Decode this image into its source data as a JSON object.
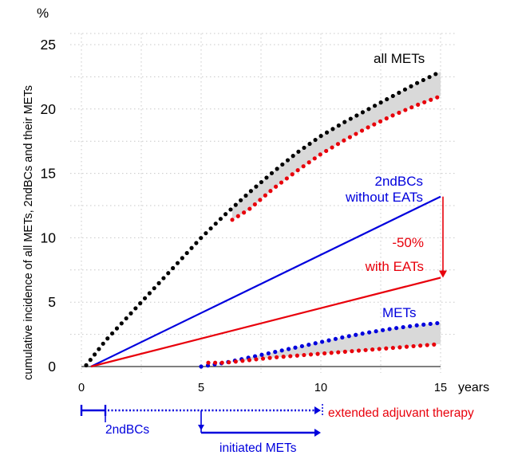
{
  "chart_data": {
    "type": "line",
    "title": "",
    "ylabel": "cumulative incidence of all METs, 2ndBCs  and their METs",
    "yunit": "%",
    "xlabel": "years",
    "xlim": [
      0,
      15
    ],
    "ylim": [
      0,
      25
    ],
    "xticks": [
      "0",
      "5",
      "10",
      "15"
    ],
    "yticks": [
      "0",
      "5",
      "10",
      "15",
      "20",
      "25"
    ],
    "grid": true,
    "series": [
      {
        "key": "all_mets",
        "name": "all METs",
        "style": "dotted",
        "color": "#000000",
        "points": [
          [
            0.2,
            0.1
          ],
          [
            1,
            2.0
          ],
          [
            2,
            4.0
          ],
          [
            3,
            6.0
          ],
          [
            4,
            8.0
          ],
          [
            5,
            10.0
          ],
          [
            6,
            11.8
          ],
          [
            7,
            13.5
          ],
          [
            8,
            15.1
          ],
          [
            9,
            16.6
          ],
          [
            10,
            17.9
          ],
          [
            11,
            19.0
          ],
          [
            12,
            20.0
          ],
          [
            13,
            21.0
          ],
          [
            14,
            22.0
          ],
          [
            15,
            22.9
          ]
        ]
      },
      {
        "key": "all_mets_eat",
        "name": "",
        "style": "dotted",
        "color": "#e8000b",
        "points": [
          [
            6.3,
            11.4
          ],
          [
            7,
            12.2
          ],
          [
            8,
            13.8
          ],
          [
            9,
            15.2
          ],
          [
            10,
            16.5
          ],
          [
            11,
            17.6
          ],
          [
            12,
            18.6
          ],
          [
            13,
            19.5
          ],
          [
            14,
            20.3
          ],
          [
            15,
            21.0
          ]
        ]
      },
      {
        "key": "second_bc_without",
        "name": "2ndBCs without EATs",
        "style": "solid",
        "color": "#0000dd",
        "points": [
          [
            0.4,
            0
          ],
          [
            15,
            13.2
          ]
        ]
      },
      {
        "key": "second_bc_with",
        "name": "with EATs",
        "style": "solid",
        "color": "#e8000b",
        "points": [
          [
            0.4,
            0
          ],
          [
            15,
            6.9
          ]
        ]
      },
      {
        "key": "mets_without",
        "name": "METs",
        "style": "dotted",
        "color": "#0000dd",
        "points": [
          [
            5,
            0
          ],
          [
            6,
            0.3
          ],
          [
            7,
            0.7
          ],
          [
            8,
            1.1
          ],
          [
            9,
            1.5
          ],
          [
            10,
            1.9
          ],
          [
            11,
            2.3
          ],
          [
            12,
            2.65
          ],
          [
            13,
            2.95
          ],
          [
            14,
            3.2
          ],
          [
            15,
            3.4
          ]
        ]
      },
      {
        "key": "mets_with",
        "name": "",
        "style": "dotted",
        "color": "#e8000b",
        "points": [
          [
            5.3,
            0.3
          ],
          [
            6,
            0.3
          ],
          [
            7,
            0.5
          ],
          [
            8,
            0.7
          ],
          [
            9,
            0.85
          ],
          [
            10,
            1.0
          ],
          [
            11,
            1.15
          ],
          [
            12,
            1.3
          ],
          [
            13,
            1.45
          ],
          [
            14,
            1.6
          ],
          [
            15,
            1.75
          ]
        ]
      }
    ],
    "shaded_bands": [
      {
        "upper": "all_mets",
        "lower": "all_mets_eat",
        "from": 6.3,
        "to": 15,
        "color": "#d9d9d9"
      },
      {
        "upper": "mets_without",
        "lower": "mets_with",
        "from": 6,
        "to": 15,
        "color": "#d9d9d9"
      }
    ],
    "annotations": {
      "all_mets_label": "all METs",
      "second_bc_label_1": "2ndBCs",
      "second_bc_label_2": "without EATs",
      "reduction_label": "-50%",
      "with_eats_label": "with EATs",
      "mets_label": "METs",
      "reduction_arrow": {
        "x": 15,
        "from": 13.2,
        "to": 6.9,
        "color": "#e8000b"
      }
    },
    "timeline": {
      "color": "#0000dd",
      "label_color": "#e8000b",
      "second_bcs_solid": [
        0,
        1
      ],
      "second_bcs_dotted": [
        1,
        10
      ],
      "initiated_mets": [
        5,
        10
      ],
      "second_bcs_label": "2ndBCs",
      "initiated_mets_label": "initiated METs",
      "extended_label": "extended adjuvant therapy"
    }
  }
}
